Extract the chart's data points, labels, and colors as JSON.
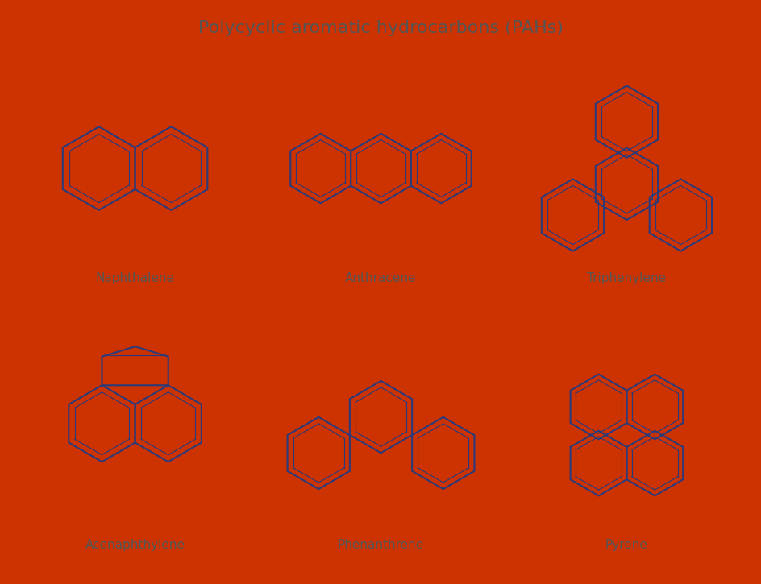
{
  "title": "Polycyclic aromatic hydrocarbons (PAHs)",
  "title_color": "#555555",
  "title_fontsize": 16,
  "background_color": "#cc3300",
  "cell_bg": "#ffffff",
  "molecule_color": "#2b3a7a",
  "molecule_lw": 1.5,
  "inner_lw": 0.8,
  "labels": [
    "Naphthalene",
    "Anthracene",
    "Triphenylene",
    "Acenaphthylene",
    "Phenanthrene",
    "Pyrene"
  ],
  "label_fontsize": 11,
  "label_color": "#555555"
}
